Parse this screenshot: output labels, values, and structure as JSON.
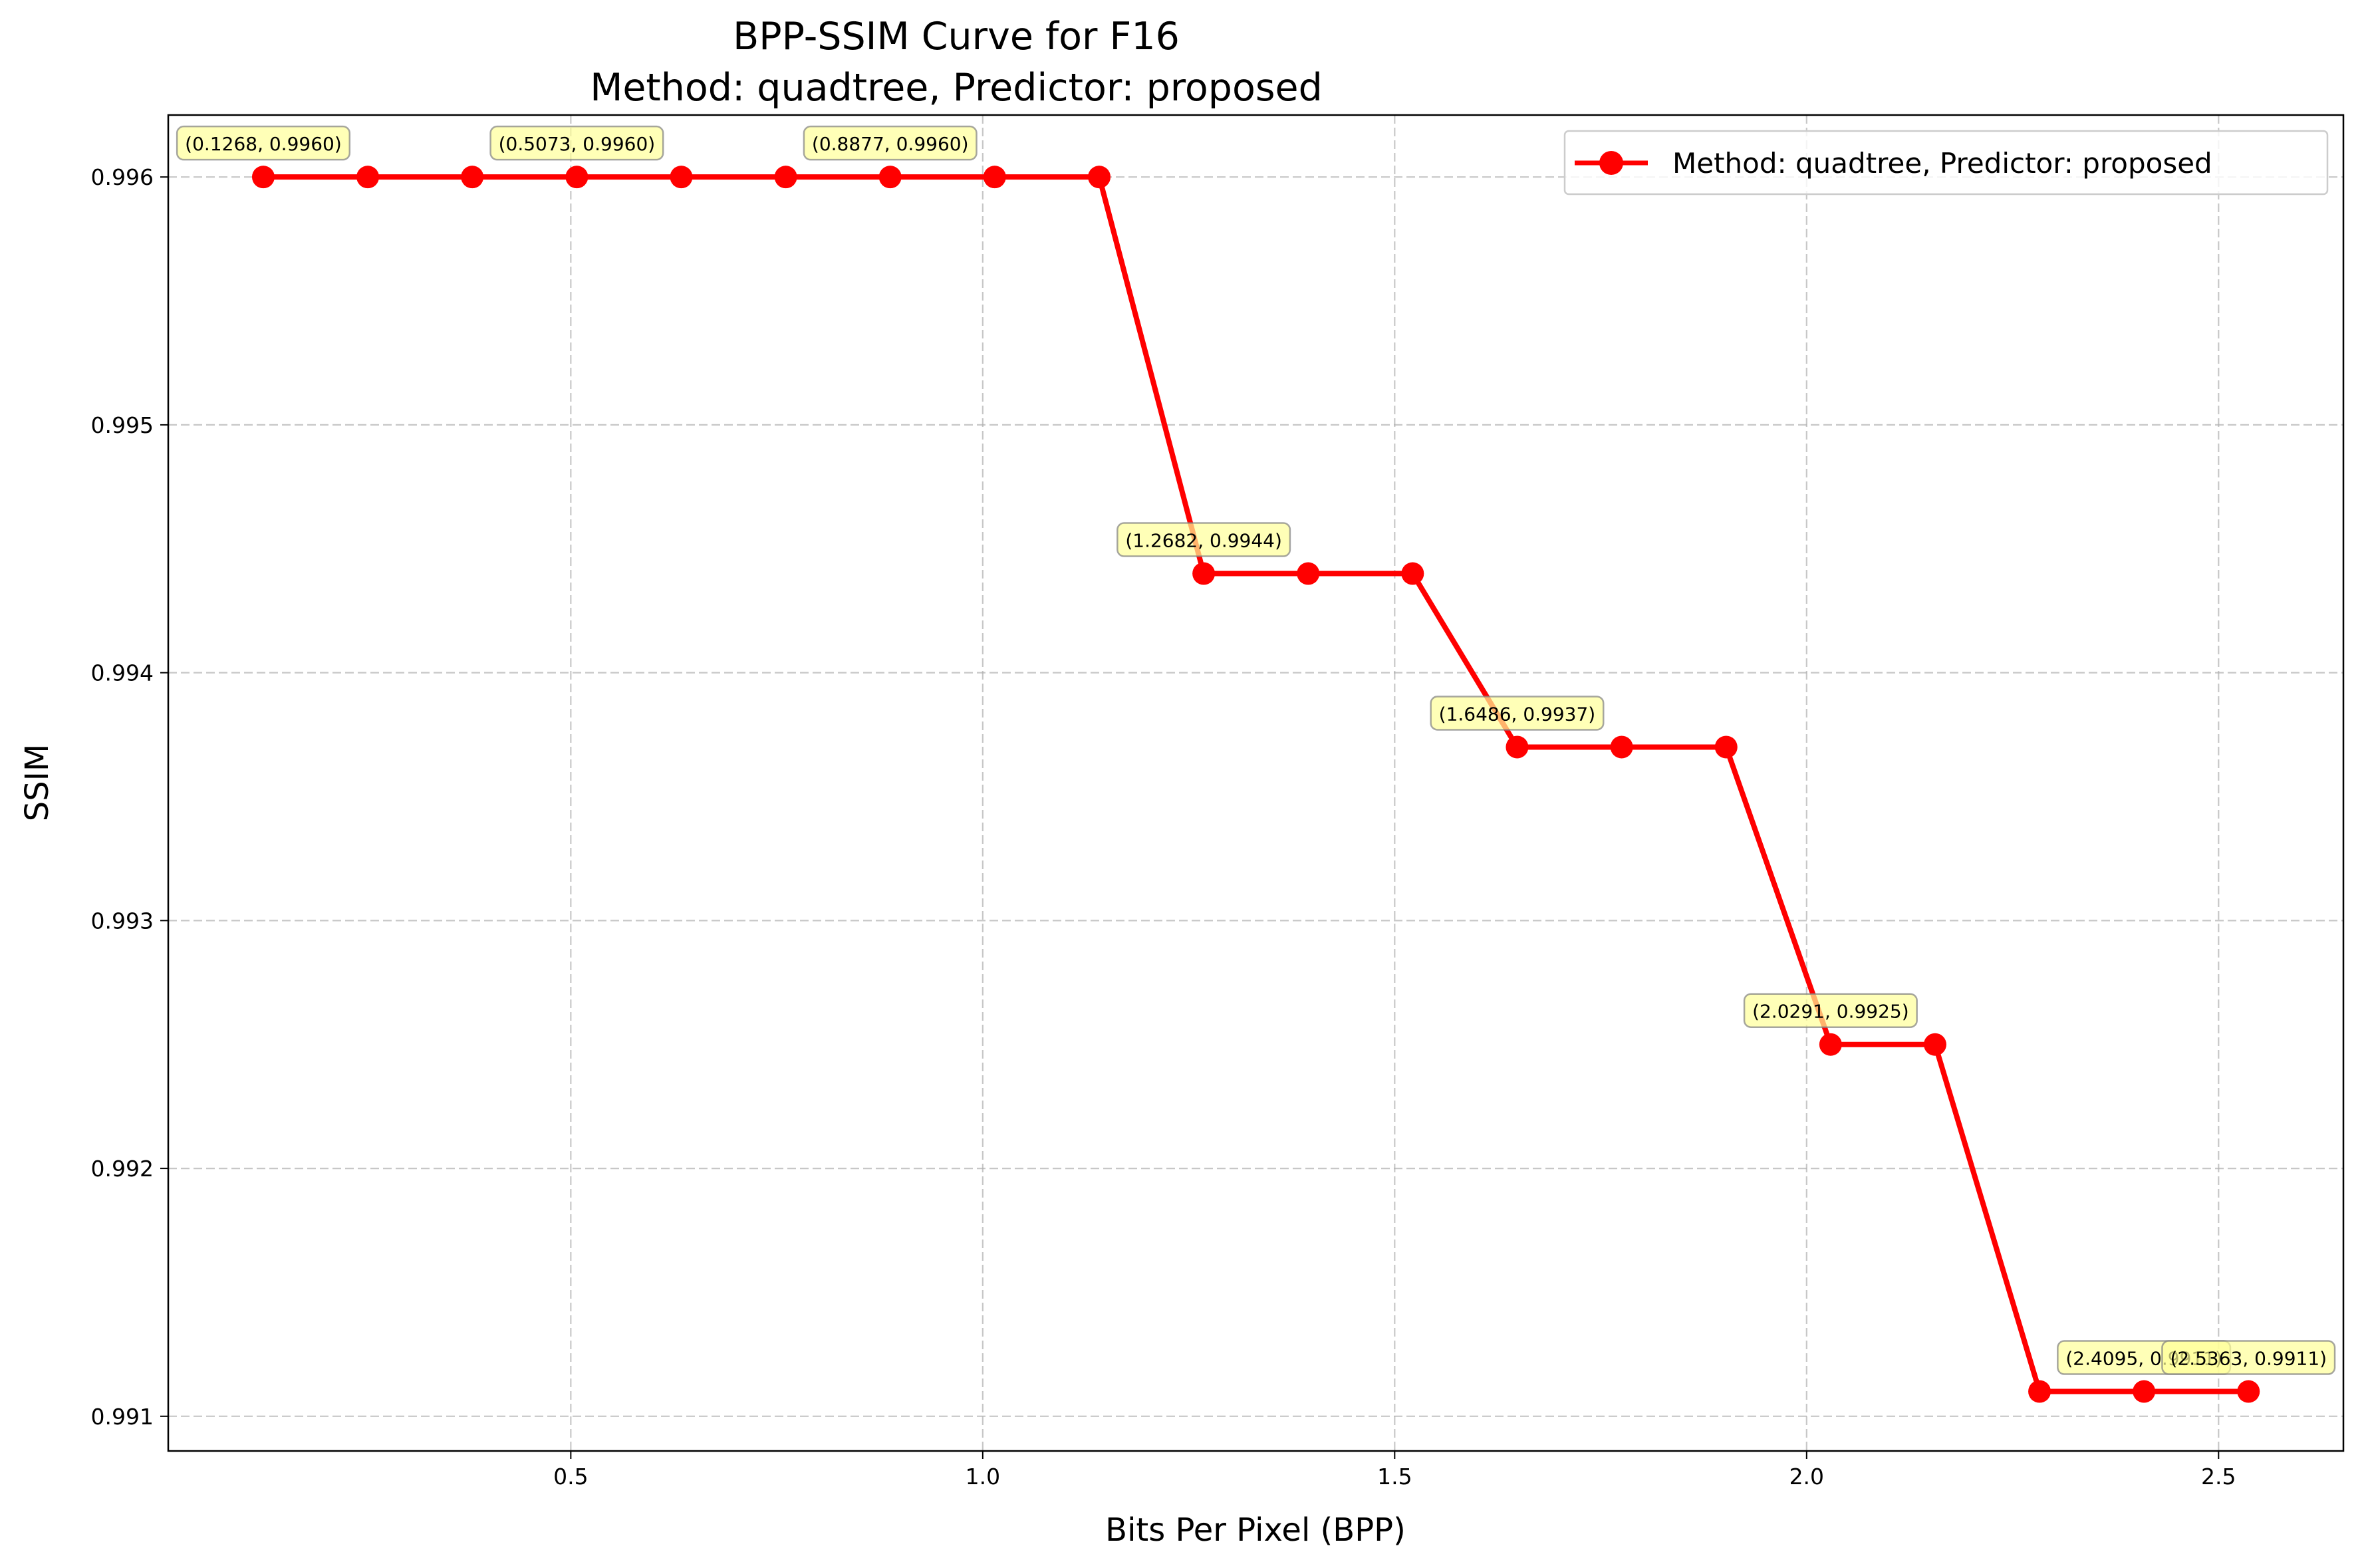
{
  "chart_data": {
    "type": "line",
    "title": "BPP-SSIM Curve for F16\nMethod: quadtree, Predictor: proposed",
    "xlabel": "Bits Per Pixel (BPP)",
    "ylabel": "SSIM",
    "xlim": [
      0.0114,
      2.6515
    ],
    "ylim": [
      0.99086,
      0.99625
    ],
    "xticks": [
      0.5,
      1.0,
      1.5,
      2.0,
      2.5
    ],
    "xtick_labels": [
      "0.5",
      "1.0",
      "1.5",
      "2.0",
      "2.5"
    ],
    "yticks": [
      0.991,
      0.992,
      0.993,
      0.994,
      0.995,
      0.996
    ],
    "ytick_labels": [
      "0.991",
      "0.992",
      "0.993",
      "0.994",
      "0.995",
      "0.996"
    ],
    "grid": true,
    "legend_position": "top-right",
    "series": [
      {
        "name": "Method: quadtree, Predictor: proposed",
        "color": "#ff0000",
        "x": [
          0.1268,
          0.2536,
          0.3804,
          0.5073,
          0.6341,
          0.7609,
          0.8877,
          1.0145,
          1.1414,
          1.2682,
          1.395,
          1.5218,
          1.6486,
          1.7755,
          1.9023,
          2.0291,
          2.1559,
          2.2827,
          2.4095,
          2.5363
        ],
        "y": [
          0.996,
          0.996,
          0.996,
          0.996,
          0.996,
          0.996,
          0.996,
          0.996,
          0.996,
          0.9944,
          0.9944,
          0.9944,
          0.9937,
          0.9937,
          0.9937,
          0.9925,
          0.9925,
          0.9911,
          0.9911,
          0.9911
        ]
      }
    ],
    "annotations": [
      {
        "text": "(0.1268, 0.9960)",
        "x": 0.1268,
        "y": 0.996
      },
      {
        "text": "(0.5073, 0.9960)",
        "x": 0.5073,
        "y": 0.996
      },
      {
        "text": "(0.8877, 0.9960)",
        "x": 0.8877,
        "y": 0.996
      },
      {
        "text": "(1.2682, 0.9944)",
        "x": 1.2682,
        "y": 0.9944
      },
      {
        "text": "(1.6486, 0.9937)",
        "x": 1.6486,
        "y": 0.9937
      },
      {
        "text": "(2.0291, 0.9925)",
        "x": 2.0291,
        "y": 0.9925
      },
      {
        "text": "(2.4095, 0.9911)",
        "x": 2.4095,
        "y": 0.9911
      },
      {
        "text": "(2.5363, 0.9911)",
        "x": 2.5363,
        "y": 0.9911
      }
    ]
  }
}
